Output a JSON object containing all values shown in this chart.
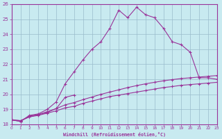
{
  "title": "",
  "xlabel": "Windchill (Refroidissement éolien,°C)",
  "background_color": "#c8eaf0",
  "line_color": "#993399",
  "grid_color": "#99bbcc",
  "x_data": [
    0,
    1,
    2,
    3,
    4,
    5,
    6,
    7,
    8,
    9,
    10,
    11,
    12,
    13,
    14,
    15,
    16,
    17,
    18,
    19,
    20,
    21,
    22,
    23
  ],
  "series_low": [
    18.3,
    18.25,
    18.5,
    18.6,
    18.75,
    18.9,
    19.1,
    19.2,
    19.4,
    19.55,
    19.7,
    19.85,
    19.95,
    20.05,
    20.15,
    20.25,
    20.35,
    20.45,
    20.52,
    20.6,
    20.65,
    20.7,
    20.75,
    20.8
  ],
  "series_mid": [
    18.3,
    18.25,
    18.5,
    18.65,
    18.85,
    19.05,
    19.3,
    19.45,
    19.65,
    19.82,
    20.0,
    20.15,
    20.3,
    20.45,
    20.58,
    20.7,
    20.8,
    20.9,
    20.98,
    21.05,
    21.1,
    21.15,
    21.2,
    21.25
  ],
  "series_peak": [
    18.3,
    18.2,
    18.6,
    18.7,
    19.0,
    19.5,
    20.7,
    21.5,
    22.3,
    23.0,
    23.5,
    24.4,
    25.6,
    25.1,
    25.8,
    25.3,
    25.1,
    24.4,
    23.5,
    23.3,
    22.8,
    21.1,
    21.1,
    21.0
  ],
  "series_short_x": [
    0,
    1,
    2,
    3,
    4,
    5,
    6,
    7
  ],
  "series_short_y": [
    18.3,
    18.2,
    18.55,
    18.65,
    18.8,
    19.05,
    19.8,
    19.95
  ],
  "ylim": [
    18,
    26
  ],
  "xlim": [
    0,
    23
  ],
  "yticks": [
    18,
    19,
    20,
    21,
    22,
    23,
    24,
    25,
    26
  ],
  "xticks": [
    0,
    1,
    2,
    3,
    4,
    5,
    6,
    7,
    8,
    9,
    10,
    11,
    12,
    13,
    14,
    15,
    16,
    17,
    18,
    19,
    20,
    21,
    22,
    23
  ]
}
